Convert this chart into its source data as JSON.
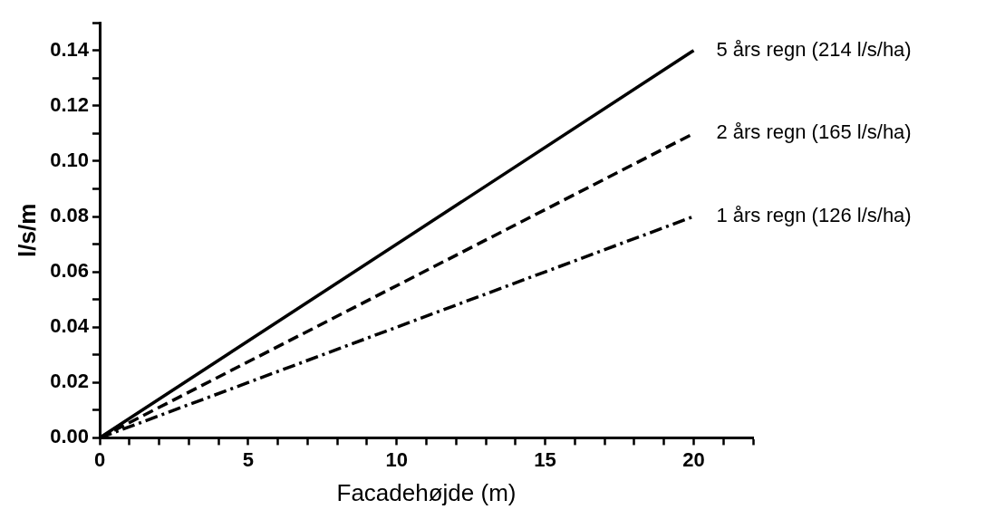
{
  "chart_data": {
    "type": "line",
    "xlabel": "Facadehøjde (m)",
    "ylabel": "l/s/m",
    "x": [
      0,
      20
    ],
    "series": [
      {
        "name": "5 års regn (214 l/s/ha)",
        "color": "#000000",
        "values": [
          0,
          0.14
        ],
        "line_style": "solid"
      },
      {
        "name": "2 års regn (165 l/s/ha)",
        "color": "#000000",
        "values": [
          0,
          0.11
        ],
        "line_style": "dashed"
      },
      {
        "name": "1 års regn (126 l/s/ha)",
        "color": "#000000",
        "values": [
          0,
          0.08
        ],
        "line_style": "dotted"
      }
    ],
    "xlim": [
      0,
      22
    ],
    "ylim": [
      0,
      0.15
    ],
    "xticks": [
      0,
      {
        "value": 1,
        "label": null
      },
      {
        "value": 2,
        "label": null
      },
      {
        "value": 3,
        "label": null
      },
      {
        "value": 4,
        "label": null
      },
      5,
      {
        "value": 6,
        "label": null
      },
      {
        "value": 7,
        "label": null
      },
      {
        "value": 8,
        "label": null
      },
      {
        "value": 9,
        "label": null
      },
      10,
      {
        "value": 11,
        "label": null
      },
      {
        "value": 12,
        "label": null
      },
      {
        "value": 13,
        "label": null
      },
      {
        "value": 14,
        "label": null
      },
      15,
      {
        "value": 16,
        "label": null
      },
      {
        "value": 17,
        "label": null
      },
      {
        "value": 18,
        "label": null
      },
      {
        "value": 19,
        "label": null
      },
      20,
      {
        "value": 21,
        "label": null
      },
      {
        "value": 22,
        "label": null
      }
    ],
    "yticks": [
      {
        "value": 0,
        "label": "0.00"
      },
      {
        "value": 0.01,
        "label": null
      },
      {
        "value": 0.02,
        "label": "0.02"
      },
      {
        "value": 0.03,
        "label": null
      },
      {
        "value": 0.04,
        "label": "0.04"
      },
      {
        "value": 0.05,
        "label": null
      },
      {
        "value": 0.06,
        "label": "0.06"
      },
      {
        "value": 0.07,
        "label": null
      },
      {
        "value": 0.08,
        "label": "0.08"
      },
      {
        "value": 0.09,
        "label": null
      },
      {
        "value": 0.1,
        "label": "0.10"
      },
      {
        "value": 0.11,
        "label": null
      },
      {
        "value": 0.12,
        "label": "0.12"
      },
      {
        "value": 0.13,
        "label": null
      },
      {
        "value": 0.14,
        "label": "0.14"
      },
      {
        "value": 0.15,
        "label": null
      }
    ],
    "grid": false,
    "legend": false,
    "marker": "none"
  }
}
